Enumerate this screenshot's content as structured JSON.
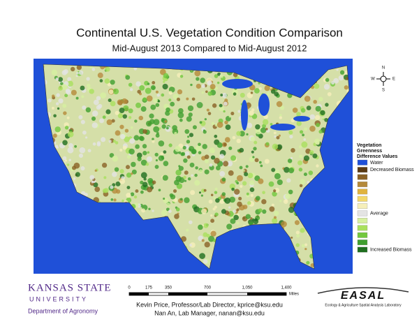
{
  "header": {
    "title": "Continental U.S. Vegetation Condition Comparison",
    "subtitle": "Mid-August 2013 Compared to Mid-August 2012"
  },
  "compass": {
    "n": "N",
    "e": "E",
    "s": "S",
    "w": "W"
  },
  "legend": {
    "title_lines": [
      "Vegetation",
      "Greenness",
      "Difference Values"
    ],
    "items": [
      {
        "color": "#1f50d8",
        "label": "Water"
      },
      {
        "color": "#5a3a12",
        "label": "Decreased Biomass"
      },
      {
        "color": "#8a6226"
      },
      {
        "color": "#b5893a"
      },
      {
        "color": "#e0b33e"
      },
      {
        "color": "#f3d86a"
      },
      {
        "color": "#f6efba"
      },
      {
        "color": "#e4e4e4",
        "label": "Average"
      },
      {
        "color": "#d6f0a0"
      },
      {
        "color": "#a9e05e"
      },
      {
        "color": "#72c83e"
      },
      {
        "color": "#3f9f2e"
      },
      {
        "color": "#1f6e1f",
        "label": "Increased Biomass"
      }
    ]
  },
  "scale": {
    "ticks": [
      "0",
      "175",
      "350",
      "700",
      "1,050",
      "1,400"
    ],
    "unit": "Miles"
  },
  "logo": {
    "name": "KANSAS STATE",
    "sub": "UNIVERSITY",
    "dept": "Department of Agronomy"
  },
  "credits": [
    "Kevin Price, Professor/Lab Director, kprice@ksu.edu",
    "Nan An, Lab Manager, nanan@ksu.edu"
  ],
  "lab": {
    "name": "EASAL",
    "full": "Ecology & Agriculture Spatial Analysis Laboratory"
  }
}
